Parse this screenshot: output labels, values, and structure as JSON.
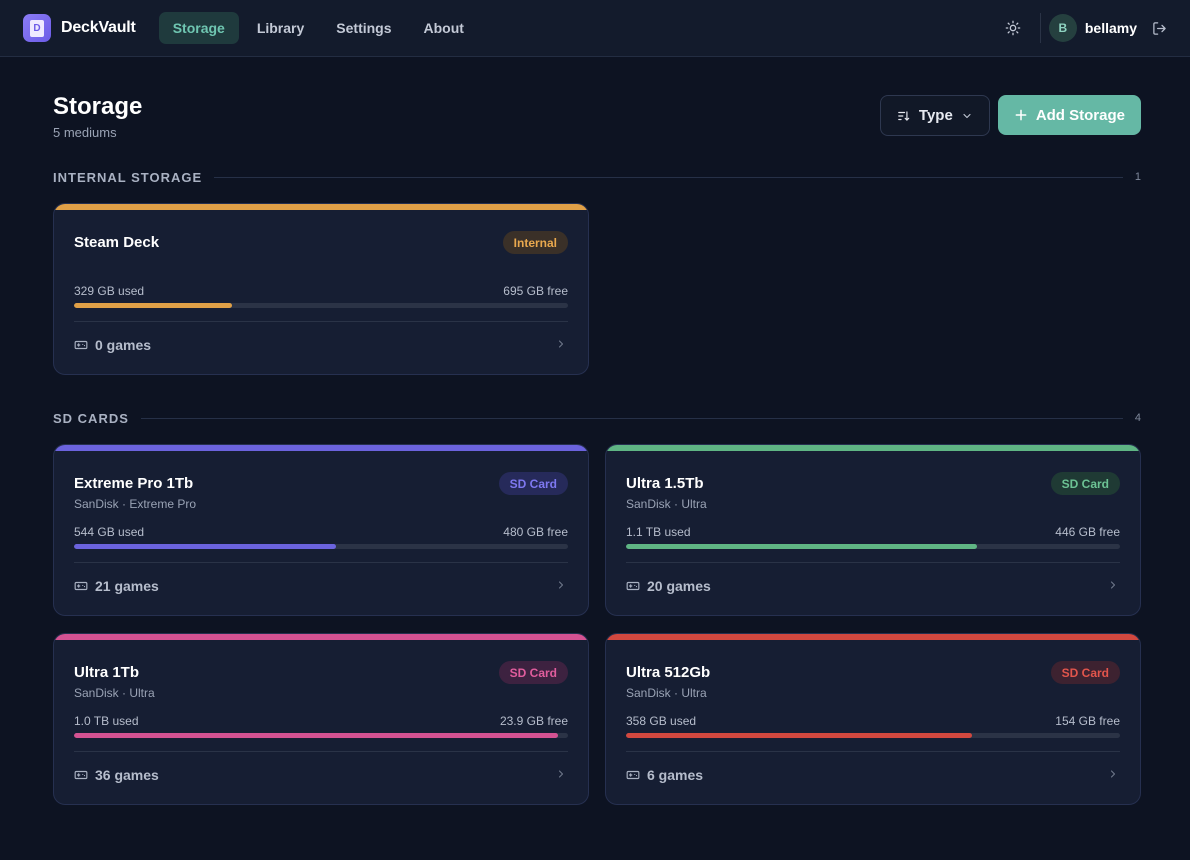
{
  "app": {
    "brand": "DeckVault",
    "logo_letter": "D"
  },
  "nav": [
    {
      "label": "Storage",
      "active": true
    },
    {
      "label": "Library",
      "active": false
    },
    {
      "label": "Settings",
      "active": false
    },
    {
      "label": "About",
      "active": false
    }
  ],
  "user": {
    "initial": "B",
    "name": "bellamy"
  },
  "icons": {
    "theme": "sun-icon",
    "logout": "logout-icon",
    "sort": "sort-icon",
    "dropdown": "chevron-down-icon",
    "add": "plus-icon",
    "games": "gamepad-icon",
    "open": "chevron-right-icon"
  },
  "page": {
    "title": "Storage",
    "subtitle": "5 mediums"
  },
  "actions": {
    "sort_label": "Type",
    "add_label": "Add Storage"
  },
  "sections": [
    {
      "title": "INTERNAL STORAGE",
      "count": "1",
      "cards": [
        {
          "name": "Steam Deck",
          "subtitle": "",
          "badge": "Internal",
          "used": "329 GB used",
          "free": "695 GB free",
          "usage_fraction": 0.32,
          "games": "0 games",
          "color": "#e0a047",
          "badge_bg": "#3a3028",
          "badge_fg": "#e9a84e"
        }
      ]
    },
    {
      "title": "SD CARDS",
      "count": "4",
      "cards": [
        {
          "name": "Extreme Pro 1Tb",
          "subtitle": "SanDisk · Extreme Pro",
          "badge": "SD Card",
          "used": "544 GB used",
          "free": "480 GB free",
          "usage_fraction": 0.53,
          "games": "21 games",
          "color": "#6b63de",
          "badge_bg": "#262a5a",
          "badge_fg": "#7e78f0"
        },
        {
          "name": "Ultra 1.5Tb",
          "subtitle": "SanDisk · Ultra",
          "badge": "SD Card",
          "used": "1.1 TB used",
          "free": "446 GB free",
          "usage_fraction": 0.71,
          "games": "20 games",
          "color": "#5fb584",
          "badge_bg": "#1f3a34",
          "badge_fg": "#6cc294"
        },
        {
          "name": "Ultra 1Tb",
          "subtitle": "SanDisk · Ultra",
          "badge": "SD Card",
          "used": "1.0 TB used",
          "free": "23.9 GB free",
          "usage_fraction": 0.98,
          "games": "36 games",
          "color": "#d45292",
          "badge_bg": "#3d2240",
          "badge_fg": "#e05d9d"
        },
        {
          "name": "Ultra 512Gb",
          "subtitle": "SanDisk · Ultra",
          "badge": "SD Card",
          "used": "358 GB used",
          "free": "154 GB free",
          "usage_fraction": 0.7,
          "games": "6 games",
          "color": "#d2483f",
          "badge_bg": "#3d2230",
          "badge_fg": "#e2554c"
        }
      ]
    }
  ]
}
